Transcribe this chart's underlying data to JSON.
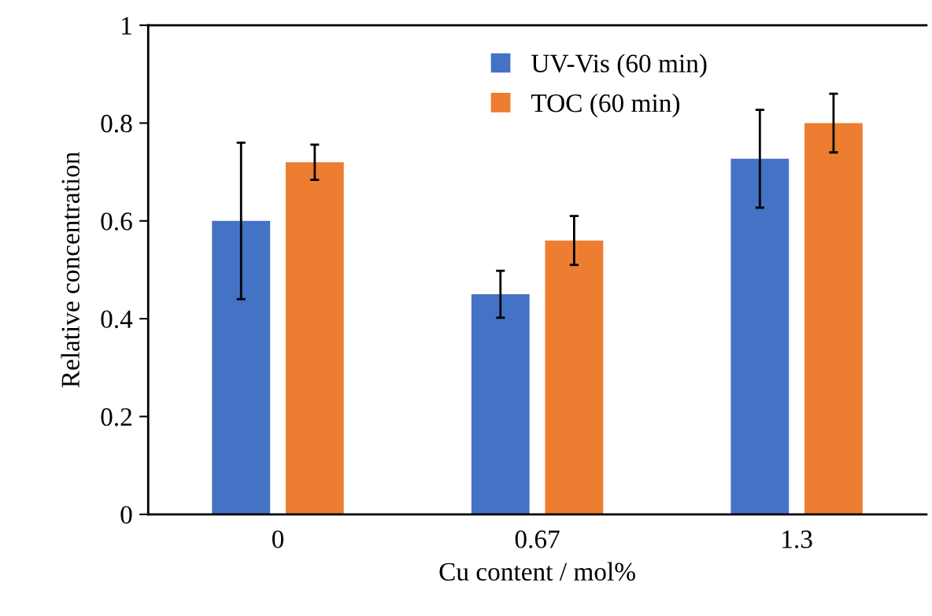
{
  "chart_data": {
    "type": "bar",
    "xlabel": "Cu content / mol%",
    "ylabel": "Relative concentration",
    "categories": [
      "0",
      "0.67",
      "1.3"
    ],
    "series": [
      {
        "name": "UV-Vis (60 min)",
        "color": "#4472c4",
        "values": [
          0.6,
          0.45,
          0.727
        ],
        "errors": [
          0.16,
          0.048,
          0.1
        ]
      },
      {
        "name": "TOC (60 min)",
        "color": "#ed7d31",
        "values": [
          0.72,
          0.56,
          0.8
        ],
        "errors": [
          0.036,
          0.05,
          0.06
        ]
      }
    ],
    "ylim": [
      0,
      1
    ],
    "yticks": [
      0,
      0.2,
      0.4,
      0.6,
      0.8,
      1
    ],
    "grid": false,
    "legend": "top"
  }
}
